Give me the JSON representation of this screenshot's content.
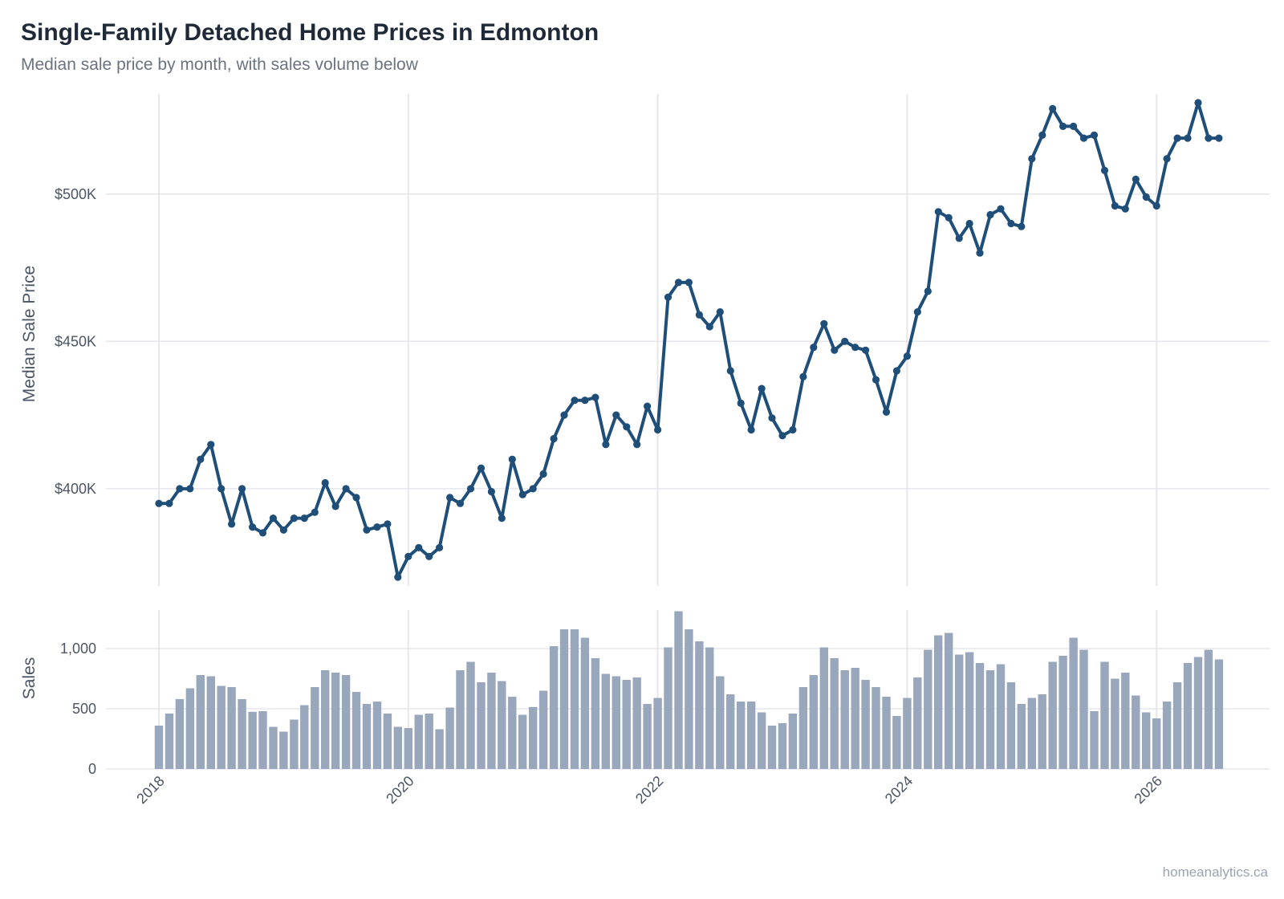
{
  "chart_data": [
    {
      "type": "line",
      "title": "Single-Family Detached Home Prices in Edmonton",
      "subtitle": "Median sale price by month, with sales volume below",
      "ylabel": "Median Sale Price",
      "ylim": [
        367000,
        534000
      ],
      "y_ticks": [
        400000,
        450000,
        500000
      ],
      "y_tick_labels": [
        "$400K",
        "$450K",
        "$500K"
      ],
      "x_start": "2018-01",
      "x_end": "2026-07",
      "x_ticks": [
        "2018",
        "2020",
        "2022",
        "2024",
        "2026"
      ],
      "color": "#1f4e79",
      "grid": true,
      "series": [
        {
          "values": [
            395000,
            395000,
            400000,
            400000,
            410000,
            415000,
            400000,
            388000,
            400000,
            387000,
            385000,
            390000,
            386000,
            390000,
            390000,
            392000,
            402000,
            394000,
            400000,
            397000,
            386000,
            387000,
            388000,
            370000,
            377000,
            380000,
            377000,
            380000,
            397000,
            395000,
            400000,
            407000,
            399000,
            390000,
            410000,
            398000,
            400000,
            405000,
            417000,
            425000,
            430000,
            430000,
            431000,
            415000,
            425000,
            421000,
            415000,
            428000,
            420000,
            465000,
            470000,
            470000,
            459000,
            455000,
            460000,
            440000,
            429000,
            420000,
            434000,
            424000,
            418000,
            420000,
            438000,
            448000,
            456000,
            447000,
            450000,
            448000,
            447000,
            437000,
            426000,
            440000,
            445000,
            460000,
            467000,
            494000,
            492000,
            485000,
            490000,
            480000,
            493000,
            495000,
            490000,
            489000,
            512000,
            520000,
            529000,
            523000,
            523000,
            519000,
            520000,
            508000,
            496000,
            495000,
            505000,
            499000,
            496000,
            512000,
            519000,
            519000,
            531000,
            519000,
            519000
          ]
        }
      ]
    },
    {
      "type": "bar",
      "ylabel": "Sales",
      "ylim": [
        0,
        1320
      ],
      "y_ticks": [
        0,
        500,
        1000
      ],
      "y_tick_labels": [
        "0",
        "500",
        "1,000"
      ],
      "color": "#98a7bb",
      "grid": true,
      "series": [
        {
          "values": [
            360,
            460,
            580,
            670,
            780,
            770,
            690,
            680,
            580,
            475,
            480,
            350,
            310,
            410,
            530,
            680,
            820,
            800,
            780,
            640,
            540,
            560,
            460,
            350,
            340,
            450,
            460,
            330,
            510,
            820,
            890,
            720,
            800,
            730,
            600,
            450,
            515,
            650,
            1020,
            1160,
            1160,
            1090,
            920,
            790,
            770,
            740,
            760,
            540,
            590,
            1010,
            1310,
            1160,
            1060,
            1010,
            770,
            620,
            560,
            560,
            470,
            360,
            380,
            460,
            680,
            780,
            1010,
            920,
            820,
            840,
            740,
            680,
            600,
            440,
            590,
            760,
            990,
            1110,
            1130,
            950,
            970,
            880,
            820,
            870,
            720,
            540,
            590,
            620,
            890,
            940,
            1090,
            990,
            480,
            890,
            750,
            800,
            610,
            470,
            420,
            560,
            720,
            880,
            930,
            990,
            910
          ]
        }
      ]
    }
  ],
  "footer": {
    "caption": "homeanalytics.ca"
  }
}
